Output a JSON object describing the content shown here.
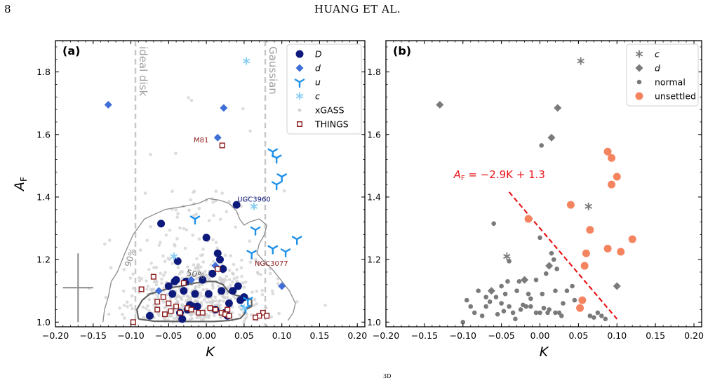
{
  "page": {
    "number": "8",
    "running_head": "HUANG ET AL.",
    "caption_fragment": "3D"
  },
  "chart_data": [
    {
      "type": "scatter",
      "panel_label": "(a)",
      "xlabel": "K",
      "ylabel": "A_F",
      "xlim": [
        -0.2,
        0.21
      ],
      "ylim": [
        0.985,
        1.9
      ],
      "xticks": [
        "−0.20",
        "−0.15",
        "−0.10",
        "−0.05",
        "0.00",
        "0.05",
        "0.10",
        "0.15",
        "0.20"
      ],
      "xtick_values": [
        -0.2,
        -0.15,
        -0.1,
        -0.05,
        0,
        0.05,
        0.1,
        0.15,
        0.2
      ],
      "yticks": [
        "1.0",
        "1.2",
        "1.4",
        "1.6",
        "1.8"
      ],
      "ytick_values": [
        1.0,
        1.2,
        1.4,
        1.6,
        1.8
      ],
      "legend_position": "top-right",
      "vlines": [
        {
          "x": -0.094,
          "label": "ideal disk",
          "color": "#c8c8c8"
        },
        {
          "x": 0.078,
          "label": "Gaussian",
          "color": "#c8c8c8"
        }
      ],
      "contours": [
        {
          "label": "90%",
          "color": "#8c8c8c",
          "points": [
            [
              -0.137,
              1.0
            ],
            [
              -0.135,
              1.04
            ],
            [
              -0.13,
              1.08
            ],
            [
              -0.126,
              1.13
            ],
            [
              -0.118,
              1.16
            ],
            [
              -0.108,
              1.22
            ],
            [
              -0.097,
              1.28
            ],
            [
              -0.082,
              1.33
            ],
            [
              -0.055,
              1.36
            ],
            [
              -0.03,
              1.37
            ],
            [
              -0.01,
              1.38
            ],
            [
              0.003,
              1.395
            ],
            [
              0.017,
              1.39
            ],
            [
              0.03,
              1.38
            ],
            [
              0.04,
              1.355
            ],
            [
              0.044,
              1.33
            ],
            [
              0.05,
              1.31
            ],
            [
              0.057,
              1.32
            ],
            [
              0.07,
              1.33
            ],
            [
              0.08,
              1.31
            ],
            [
              0.077,
              1.28
            ],
            [
              0.07,
              1.25
            ],
            [
              0.067,
              1.22
            ],
            [
              0.078,
              1.19
            ],
            [
              0.087,
              1.17
            ],
            [
              0.097,
              1.14
            ],
            [
              0.11,
              1.1
            ],
            [
              0.118,
              1.06
            ],
            [
              0.115,
              1.03
            ],
            [
              0.108,
              1.005
            ]
          ]
        },
        {
          "label": "50%",
          "color": "#646464",
          "points": [
            [
              -0.09,
              1.01
            ],
            [
              -0.092,
              1.04
            ],
            [
              -0.085,
              1.07
            ],
            [
              -0.075,
              1.09
            ],
            [
              -0.06,
              1.1
            ],
            [
              -0.048,
              1.11
            ],
            [
              -0.033,
              1.115
            ],
            [
              -0.015,
              1.125
            ],
            [
              0.0,
              1.13
            ],
            [
              0.012,
              1.13
            ],
            [
              0.022,
              1.12
            ],
            [
              0.03,
              1.095
            ],
            [
              0.04,
              1.085
            ],
            [
              0.053,
              1.08
            ],
            [
              0.06,
              1.07
            ],
            [
              0.06,
              1.05
            ],
            [
              0.052,
              1.04
            ],
            [
              0.05,
              1.025
            ],
            [
              0.045,
              1.012
            ],
            [
              0.03,
              1.005
            ],
            [
              0.01,
              1.002
            ],
            [
              -0.03,
              1.002
            ],
            [
              -0.07,
              1.003
            ],
            [
              -0.09,
              1.01
            ]
          ]
        }
      ],
      "contour_labels": [
        {
          "text": "90%",
          "x": -0.101,
          "y": 1.175,
          "rotate": -72,
          "color": "#8c8c8c"
        },
        {
          "text": "50%",
          "x": -0.027,
          "y": 1.15,
          "rotate": 12,
          "color": "#646464"
        }
      ],
      "error_cross": {
        "x": -0.17,
        "y": 1.11,
        "dx": 0.02,
        "y_low": 1.0,
        "y_high": 1.22,
        "color": "#8c8c8c"
      },
      "xgass_background": {
        "name": "xGASS",
        "color": "#d0d0d0",
        "seed": 7,
        "count": 520
      },
      "series": [
        {
          "name": "D",
          "marker": "circle",
          "color": "#0d1a7c",
          "points": [
            [
              -0.075,
              1.02
            ],
            [
              -0.06,
              1.315
            ],
            [
              -0.05,
              1.115
            ],
            [
              -0.045,
              1.09
            ],
            [
              -0.042,
              1.13
            ],
            [
              -0.04,
              1.135
            ],
            [
              -0.038,
              1.195
            ],
            [
              -0.035,
              1.03
            ],
            [
              -0.032,
              1.01
            ],
            [
              -0.03,
              1.1
            ],
            [
              -0.027,
              1.13
            ],
            [
              -0.025,
              1.04
            ],
            [
              -0.022,
              1.055
            ],
            [
              -0.018,
              1.05
            ],
            [
              -0.015,
              1.09
            ],
            [
              -0.012,
              1.05
            ],
            [
              -0.005,
              1.135
            ],
            [
              0.0,
              1.27
            ],
            [
              0.003,
              1.09
            ],
            [
              0.008,
              1.155
            ],
            [
              0.012,
              1.04
            ],
            [
              0.015,
              1.22
            ],
            [
              0.018,
              1.2
            ],
            [
              0.02,
              1.1
            ],
            [
              0.022,
              1.17
            ],
            [
              0.025,
              1.03
            ],
            [
              0.028,
              1.02
            ],
            [
              0.03,
              1.06
            ],
            [
              0.035,
              1.1
            ],
            [
              0.04,
              1.375
            ],
            [
              0.042,
              1.115
            ],
            [
              0.045,
              1.07
            ],
            [
              0.05,
              1.08
            ]
          ]
        },
        {
          "name": "d",
          "marker": "diamond",
          "color": "#3f6ed8",
          "points": [
            [
              -0.13,
              1.695
            ],
            [
              0.023,
              1.685
            ],
            [
              0.015,
              1.59
            ],
            [
              -0.063,
              1.1
            ],
            [
              -0.02,
              1.135
            ],
            [
              0.012,
              1.18
            ],
            [
              0.1,
              1.115
            ]
          ]
        },
        {
          "name": "u",
          "marker": "tri",
          "color": "#1e90e8",
          "points": [
            [
              0.088,
              1.545
            ],
            [
              0.093,
              1.525
            ],
            [
              0.1,
              1.465
            ],
            [
              0.093,
              1.44
            ],
            [
              -0.015,
              1.33
            ],
            [
              0.065,
              1.295
            ],
            [
              0.12,
              1.265
            ],
            [
              0.088,
              1.235
            ],
            [
              0.105,
              1.225
            ],
            [
              0.06,
              1.22
            ],
            [
              0.055,
              1.07
            ],
            [
              0.052,
              1.045
            ]
          ]
        },
        {
          "name": "c",
          "marker": "asterisk",
          "color": "#86cdf3",
          "points": [
            [
              0.053,
              1.835
            ],
            [
              0.063,
              1.37
            ],
            [
              -0.043,
              1.21
            ],
            [
              0.05,
              1.045
            ]
          ]
        },
        {
          "name": "THINGS",
          "marker": "square",
          "color": "#8b1a1a",
          "points": [
            [
              -0.097,
              1.0
            ],
            [
              -0.07,
              1.145
            ],
            [
              -0.086,
              1.105
            ],
            [
              -0.065,
              1.065
            ],
            [
              -0.057,
              1.08
            ],
            [
              -0.065,
              1.04
            ],
            [
              -0.055,
              1.025
            ],
            [
              -0.05,
              1.06
            ],
            [
              -0.047,
              1.035
            ],
            [
              -0.04,
              1.05
            ],
            [
              -0.035,
              1.03
            ],
            [
              -0.03,
              1.125
            ],
            [
              -0.025,
              1.045
            ],
            [
              -0.02,
              1.04
            ],
            [
              -0.01,
              1.03
            ],
            [
              -0.005,
              1.03
            ],
            [
              0.005,
              1.045
            ],
            [
              0.012,
              1.04
            ],
            [
              0.02,
              1.03
            ],
            [
              0.025,
              1.025
            ],
            [
              0.028,
              1.04
            ],
            [
              0.015,
              1.17
            ],
            [
              0.021,
              1.565
            ],
            [
              0.03,
              1.02
            ],
            [
              0.075,
              1.03
            ],
            [
              0.08,
              1.02
            ],
            [
              0.07,
              1.02
            ],
            [
              0.065,
              1.015
            ]
          ]
        }
      ],
      "annotations": [
        {
          "text": "M81",
          "x": 0.003,
          "y": 1.575,
          "color": "#8b1a1a"
        },
        {
          "text": "UGC3960",
          "x": 0.041,
          "y": 1.385,
          "color": "#0d1a7c"
        },
        {
          "text": "NGC3077",
          "x": 0.064,
          "y": 1.18,
          "color": "#8b1a1a"
        }
      ],
      "legend": [
        "D",
        "d",
        "u",
        "c",
        "xGASS",
        "THINGS"
      ]
    },
    {
      "type": "scatter",
      "panel_label": "(b)",
      "xlabel": "K",
      "xlim": [
        -0.2,
        0.21
      ],
      "ylim": [
        0.985,
        1.9
      ],
      "xticks": [
        "−0.20",
        "−0.15",
        "−0.10",
        "−0.05",
        "0.00",
        "0.05",
        "0.10",
        "0.15",
        "0.20"
      ],
      "xtick_values": [
        -0.2,
        -0.15,
        -0.1,
        -0.05,
        0,
        0.05,
        0.1,
        0.15,
        0.2
      ],
      "yticks": [
        "1.0",
        "1.2",
        "1.4",
        "1.6",
        "1.8"
      ],
      "ytick_values": [
        1.0,
        1.2,
        1.4,
        1.6,
        1.8
      ],
      "legend_position": "top-right",
      "fit_line": {
        "label": "A_F = −2.9K + 1.3",
        "slope": -2.9,
        "intercept": 1.3,
        "x_range": [
          -0.04,
          0.1
        ],
        "color": "#e8161a"
      },
      "fit_label_position": {
        "x": -0.112,
        "y": 1.46
      },
      "series": [
        {
          "name": "c",
          "marker": "asterisk",
          "color": "#7a7a7a",
          "points": [
            [
              0.053,
              1.835
            ],
            [
              0.063,
              1.37
            ],
            [
              -0.043,
              1.21
            ]
          ]
        },
        {
          "name": "d",
          "marker": "diamond",
          "color": "#7a7a7a",
          "points": [
            [
              -0.13,
              1.695
            ],
            [
              0.023,
              1.685
            ],
            [
              0.015,
              1.59
            ],
            [
              -0.063,
              1.1
            ],
            [
              -0.02,
              1.135
            ],
            [
              0.012,
              1.18
            ],
            [
              0.1,
              1.115
            ]
          ]
        },
        {
          "name": "normal",
          "marker": "smallcircle",
          "color": "#7a7a7a",
          "points": [
            [
              -0.06,
              1.315
            ],
            [
              -0.04,
              1.195
            ],
            [
              -0.042,
              1.13
            ],
            [
              -0.045,
              1.09
            ],
            [
              -0.05,
              1.115
            ],
            [
              -0.035,
              1.03
            ],
            [
              -0.032,
              1.01
            ],
            [
              -0.03,
              1.1
            ],
            [
              -0.027,
              1.13
            ],
            [
              -0.025,
              1.04
            ],
            [
              -0.022,
              1.055
            ],
            [
              -0.018,
              1.05
            ],
            [
              -0.015,
              1.09
            ],
            [
              -0.012,
              1.05
            ],
            [
              -0.005,
              1.135
            ],
            [
              0.0,
              1.27
            ],
            [
              0.003,
              1.09
            ],
            [
              0.008,
              1.155
            ],
            [
              0.012,
              1.04
            ],
            [
              0.015,
              1.22
            ],
            [
              0.018,
              1.2
            ],
            [
              0.02,
              1.1
            ],
            [
              0.022,
              1.17
            ],
            [
              0.025,
              1.03
            ],
            [
              0.028,
              1.02
            ],
            [
              0.03,
              1.06
            ],
            [
              0.035,
              1.1
            ],
            [
              0.042,
              1.115
            ],
            [
              0.045,
              1.07
            ],
            [
              -0.075,
              1.02
            ],
            [
              -0.07,
              1.05
            ],
            [
              -0.065,
              1.065
            ],
            [
              -0.057,
              1.08
            ],
            [
              -0.055,
              1.025
            ],
            [
              -0.05,
              1.06
            ],
            [
              -0.047,
              1.035
            ],
            [
              -0.04,
              1.05
            ],
            [
              -0.09,
              1.05
            ],
            [
              -0.085,
              1.03
            ],
            [
              -0.08,
              1.1
            ],
            [
              -0.1,
              1.0
            ],
            [
              -0.095,
              1.07
            ],
            [
              -0.005,
              1.03
            ],
            [
              0.0,
              1.03
            ],
            [
              0.005,
              1.045
            ],
            [
              0.01,
              1.03
            ],
            [
              0.02,
              1.03
            ],
            [
              0.065,
              1.02
            ],
            [
              0.07,
              1.015
            ],
            [
              0.075,
              1.03
            ],
            [
              0.08,
              1.02
            ],
            [
              0.085,
              1.01
            ],
            [
              -0.07,
              1.08
            ],
            [
              -0.012,
              1.075
            ],
            [
              0.002,
              1.565
            ]
          ]
        },
        {
          "name": "unsettled",
          "marker": "circle",
          "color": "#f4845f",
          "points": [
            [
              0.088,
              1.545
            ],
            [
              0.093,
              1.525
            ],
            [
              0.1,
              1.465
            ],
            [
              0.093,
              1.44
            ],
            [
              -0.015,
              1.33
            ],
            [
              0.04,
              1.375
            ],
            [
              0.065,
              1.295
            ],
            [
              0.12,
              1.265
            ],
            [
              0.088,
              1.235
            ],
            [
              0.105,
              1.225
            ],
            [
              0.06,
              1.22
            ],
            [
              0.055,
              1.07
            ],
            [
              0.052,
              1.045
            ],
            [
              0.058,
              1.18
            ]
          ]
        }
      ],
      "legend": [
        "c",
        "d",
        "normal",
        "unsettled"
      ]
    }
  ]
}
